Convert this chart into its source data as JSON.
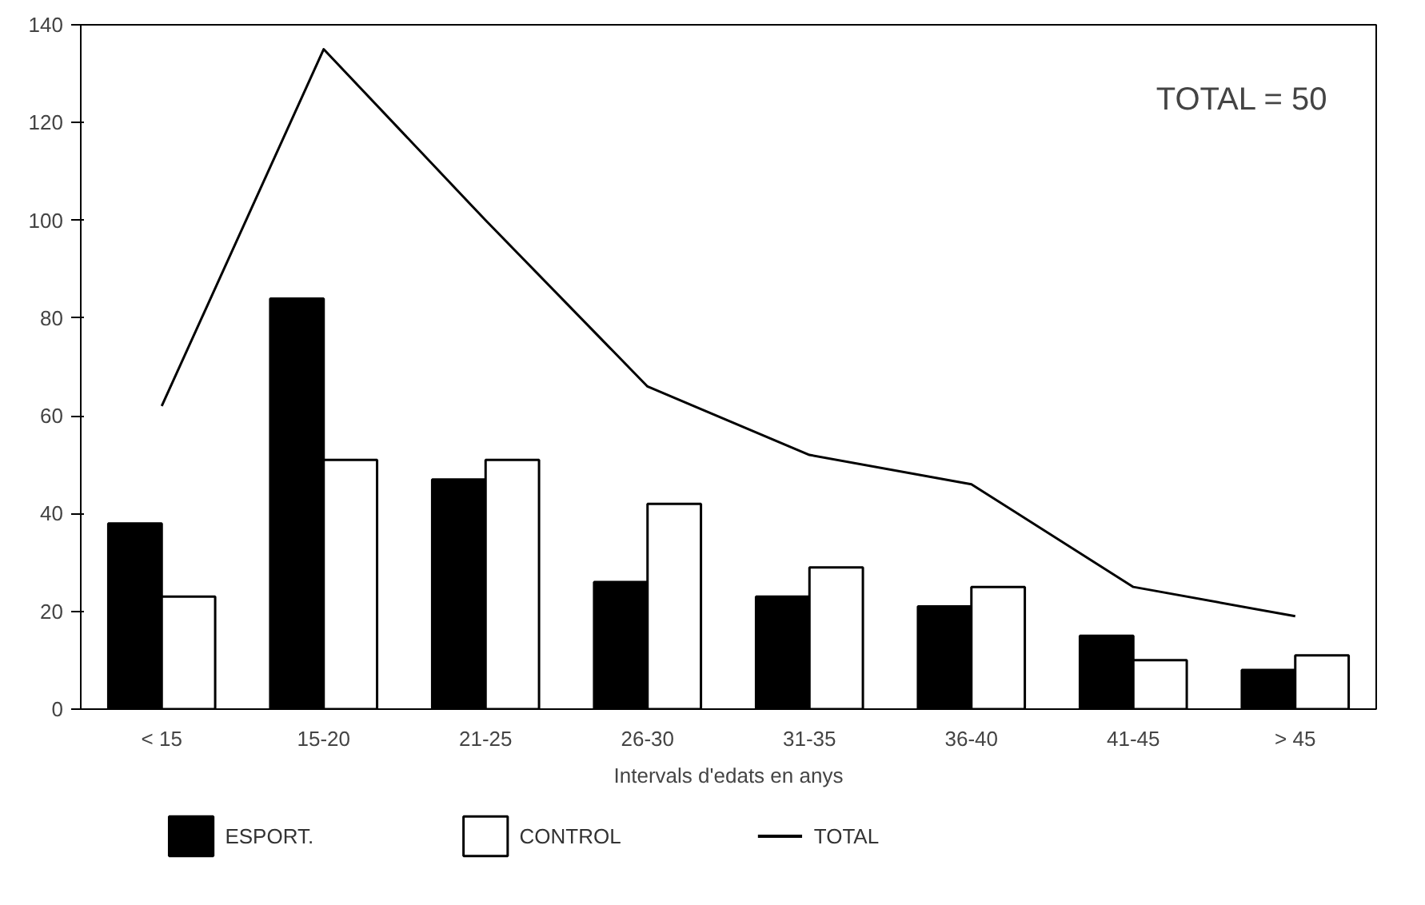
{
  "chart_data": {
    "type": "bar",
    "xlabel": "Intervals d'edats en anys",
    "categories": [
      "< 15",
      "15-20",
      "21-25",
      "26-30",
      "31-35",
      "36-40",
      "41-45",
      "> 45"
    ],
    "series": [
      {
        "name": "ESPORT.",
        "color": "#000000",
        "values": [
          38,
          84,
          47,
          26,
          23,
          21,
          15,
          8
        ]
      },
      {
        "name": "CONTROL",
        "color": "#ffffff",
        "values": [
          23,
          51,
          51,
          42,
          29,
          25,
          10,
          11
        ]
      },
      {
        "name": "TOTAL",
        "type": "line",
        "color": "#000000",
        "values": [
          62,
          135,
          100,
          66,
          52,
          46,
          25,
          19
        ]
      }
    ],
    "ylim": [
      0,
      140
    ],
    "yticks": [
      0,
      20,
      40,
      60,
      80,
      100,
      120,
      140
    ],
    "grid": false,
    "legend": "bottom",
    "annotations": [
      "TOTAL = 50"
    ]
  }
}
